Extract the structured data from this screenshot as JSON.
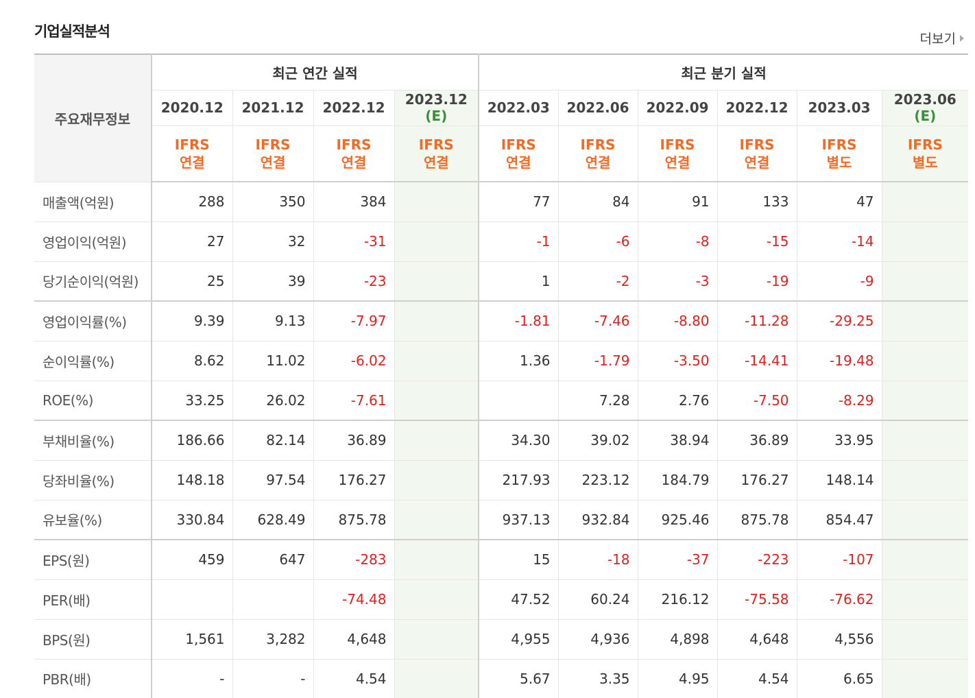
{
  "title": "기업실적분석",
  "more_label": "더보기",
  "header": {
    "main_label": "주요재무정보",
    "annual_label": "최근 연간 실적",
    "quarter_label": "최근 분기 실적",
    "estimate_tag": "(E)",
    "annual_periods": [
      "2020.12",
      "2021.12",
      "2022.12",
      "2023.12"
    ],
    "quarter_periods": [
      "2022.03",
      "2022.06",
      "2022.09",
      "2022.12",
      "2023.03",
      "2023.06"
    ],
    "ifrs_top": [
      "IFRS",
      "IFRS",
      "IFRS",
      "IFRS",
      "IFRS",
      "IFRS",
      "IFRS",
      "IFRS",
      "IFRS",
      "IFRS"
    ],
    "ifrs_bottom": [
      "연결",
      "연결",
      "연결",
      "연결",
      "연결",
      "연결",
      "연결",
      "연결",
      "별도",
      "별도"
    ]
  },
  "rows": [
    {
      "label": "매출액(억원)",
      "values": [
        "288",
        "350",
        "384",
        "",
        "77",
        "84",
        "91",
        "133",
        "47",
        ""
      ]
    },
    {
      "label": "영업이익(억원)",
      "values": [
        "27",
        "32",
        "-31",
        "",
        "-1",
        "-6",
        "-8",
        "-15",
        "-14",
        ""
      ]
    },
    {
      "label": "당기순이익(억원)",
      "values": [
        "25",
        "39",
        "-23",
        "",
        "1",
        "-2",
        "-3",
        "-19",
        "-9",
        ""
      ]
    },
    {
      "label": "영업이익률(%)",
      "values": [
        "9.39",
        "9.13",
        "-7.97",
        "",
        "-1.81",
        "-7.46",
        "-8.80",
        "-11.28",
        "-29.25",
        ""
      ]
    },
    {
      "label": "순이익률(%)",
      "values": [
        "8.62",
        "11.02",
        "-6.02",
        "",
        "1.36",
        "-1.79",
        "-3.50",
        "-14.41",
        "-19.48",
        ""
      ]
    },
    {
      "label": "ROE(%)",
      "values": [
        "33.25",
        "26.02",
        "-7.61",
        "",
        "",
        "7.28",
        "2.76",
        "-7.50",
        "-8.29",
        ""
      ]
    },
    {
      "label": "부채비율(%)",
      "values": [
        "186.66",
        "82.14",
        "36.89",
        "",
        "34.30",
        "39.02",
        "38.94",
        "36.89",
        "33.95",
        ""
      ]
    },
    {
      "label": "당좌비율(%)",
      "values": [
        "148.18",
        "97.54",
        "176.27",
        "",
        "217.93",
        "223.12",
        "184.79",
        "176.27",
        "148.14",
        ""
      ]
    },
    {
      "label": "유보율(%)",
      "values": [
        "330.84",
        "628.49",
        "875.78",
        "",
        "937.13",
        "932.84",
        "925.46",
        "875.78",
        "854.47",
        ""
      ]
    },
    {
      "label": "EPS(원)",
      "values": [
        "459",
        "647",
        "-283",
        "",
        "15",
        "-18",
        "-37",
        "-223",
        "-107",
        ""
      ]
    },
    {
      "label": "PER(배)",
      "values": [
        "",
        "",
        "-74.48",
        "",
        "47.52",
        "60.24",
        "216.12",
        "-75.58",
        "-76.62",
        ""
      ]
    },
    {
      "label": "BPS(원)",
      "values": [
        "1,561",
        "3,282",
        "4,648",
        "",
        "4,955",
        "4,936",
        "4,898",
        "4,648",
        "4,556",
        ""
      ]
    },
    {
      "label": "PBR(배)",
      "values": [
        "-",
        "-",
        "4.54",
        "",
        "5.67",
        "3.35",
        "4.95",
        "4.54",
        "6.65",
        ""
      ]
    }
  ],
  "colors": {
    "negative": "#e02020",
    "ifrs": "#f26b26",
    "estimate_bg": "#f2f8ef",
    "estimate_tag": "#3c8d3c"
  }
}
